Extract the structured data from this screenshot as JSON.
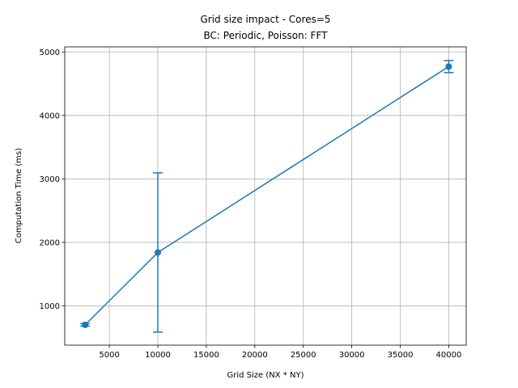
{
  "chart_data": {
    "type": "line",
    "title": "Grid size impact - Cores=5",
    "subtitle": "BC: Periodic, Poisson: FFT",
    "xlabel": "Grid Size (NX * NY)",
    "ylabel": "Computation Time (ms)",
    "xlim": [
      400,
      41800
    ],
    "ylim": [
      380,
      5080
    ],
    "xticks": [
      5000,
      10000,
      15000,
      20000,
      25000,
      30000,
      35000,
      40000
    ],
    "yticks": [
      1000,
      2000,
      3000,
      4000,
      5000
    ],
    "grid": true,
    "color": "#1f77b4",
    "series": [
      {
        "x": [
          2500,
          10000,
          40000
        ],
        "y": [
          700,
          1840,
          4770
        ],
        "error": [
          20,
          1255,
          95
        ]
      }
    ]
  }
}
